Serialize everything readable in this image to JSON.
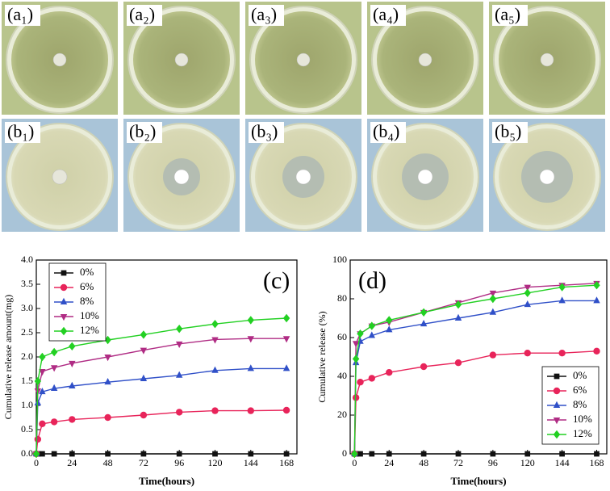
{
  "panels": {
    "row_a": [
      "(a₁)",
      "(a₂)",
      "(a₃)",
      "(a₄)",
      "(a₅)"
    ],
    "row_b": [
      "(b₁)",
      "(b₂)",
      "(b₃)",
      "(b₄)",
      "(b₅)"
    ]
  },
  "chart_data": [
    {
      "type": "line",
      "annotation": "(c)",
      "x_label": "Time(hours)",
      "y_label": "Cumulative release amount(mg)",
      "x": [
        0,
        1,
        4,
        12,
        24,
        48,
        72,
        96,
        120,
        144,
        168
      ],
      "xlim": [
        0,
        175
      ],
      "xticks": [
        0,
        24,
        48,
        72,
        96,
        120,
        144,
        168
      ],
      "ylim": [
        0,
        4
      ],
      "yticks": [
        {
          "value": 0,
          "label": "0.0"
        },
        0.5,
        {
          "value": 1,
          "label": "1.0"
        },
        1.5,
        {
          "value": 2,
          "label": "2.0"
        },
        2.5,
        {
          "value": 3,
          "label": "3.0"
        },
        3.5,
        {
          "value": 4,
          "label": "4.0"
        }
      ],
      "legend": "upper left",
      "series": [
        {
          "name": "0%",
          "color": "#111111",
          "marker": "square",
          "values": [
            0,
            0,
            0,
            0,
            0,
            0,
            0,
            0,
            0,
            0,
            0
          ]
        },
        {
          "name": "6%",
          "color": "#e8245a",
          "marker": "circle",
          "values": [
            0,
            0.3,
            0.62,
            0.66,
            0.71,
            0.75,
            0.8,
            0.86,
            0.89,
            0.89,
            0.9
          ]
        },
        {
          "name": "8%",
          "color": "#3050c8",
          "marker": "triangle-up",
          "values": [
            0,
            1.05,
            1.28,
            1.35,
            1.4,
            1.48,
            1.55,
            1.62,
            1.72,
            1.76,
            1.76
          ]
        },
        {
          "name": "10%",
          "color": "#b02c84",
          "marker": "triangle-down",
          "values": [
            0,
            1.3,
            1.7,
            1.78,
            1.87,
            2.0,
            2.14,
            2.27,
            2.36,
            2.38,
            2.38
          ]
        },
        {
          "name": "12%",
          "color": "#22d022",
          "marker": "diamond",
          "values": [
            0,
            1.5,
            2.0,
            2.1,
            2.22,
            2.35,
            2.46,
            2.58,
            2.68,
            2.76,
            2.8
          ]
        }
      ]
    },
    {
      "type": "line",
      "annotation": "(d)",
      "x_label": "Time(hours)",
      "y_label": "Cumulative release (%)",
      "x": [
        0,
        1,
        4,
        12,
        24,
        48,
        72,
        96,
        120,
        144,
        168
      ],
      "xlim": [
        -3,
        175
      ],
      "xticks": [
        0,
        24,
        48,
        72,
        96,
        120,
        144,
        168
      ],
      "ylim": [
        0,
        100
      ],
      "yticks": [
        0,
        20,
        40,
        60,
        80,
        100
      ],
      "legend": "lower right",
      "series": [
        {
          "name": "0%",
          "color": "#111111",
          "marker": "square",
          "values": [
            0,
            0,
            0,
            0,
            0,
            0,
            0,
            0,
            0,
            0,
            0
          ]
        },
        {
          "name": "6%",
          "color": "#e8245a",
          "marker": "circle",
          "values": [
            0,
            29,
            37,
            39,
            42,
            45,
            47,
            51,
            52,
            52,
            53
          ]
        },
        {
          "name": "8%",
          "color": "#3050c8",
          "marker": "triangle-up",
          "values": [
            0,
            47,
            58,
            61,
            64,
            67,
            70,
            73,
            77,
            79,
            79
          ]
        },
        {
          "name": "10%",
          "color": "#b02c84",
          "marker": "triangle-down",
          "values": [
            0,
            57,
            62,
            66,
            68,
            73,
            78,
            83,
            86,
            87,
            88
          ]
        },
        {
          "name": "12%",
          "color": "#22d022",
          "marker": "diamond",
          "values": [
            0,
            49,
            62,
            66,
            69,
            73,
            77,
            80,
            83,
            86,
            87
          ]
        }
      ]
    }
  ]
}
